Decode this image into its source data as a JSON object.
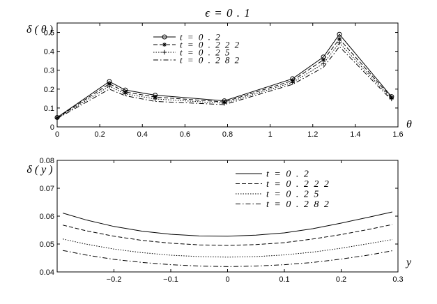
{
  "figure_title": "ϵ  =  0 . 1",
  "chart_data": [
    {
      "type": "line",
      "ylabel": "δ ( θ )",
      "xlabel": "θ",
      "xlim": [
        0,
        1.6
      ],
      "ylim": [
        0,
        0.55
      ],
      "xticks": [
        0,
        0.2,
        0.4,
        0.6,
        0.8,
        1,
        1.2,
        1.4,
        1.6
      ],
      "yticks": [
        0,
        0.1,
        0.2,
        0.3,
        0.4,
        0.5
      ],
      "x": [
        0,
        0.245,
        0.32,
        0.46,
        0.785,
        1.105,
        1.25,
        1.325,
        1.57
      ],
      "legend_position": "top-center",
      "series": [
        {
          "name": "t  =  0 . 2",
          "style": "solid",
          "marker": "circle",
          "values": [
            0.05,
            0.24,
            0.195,
            0.168,
            0.138,
            0.255,
            0.37,
            0.49,
            0.16
          ]
        },
        {
          "name": "t  =  0 . 2 2 2",
          "style": "dashed",
          "marker": "star",
          "values": [
            0.048,
            0.228,
            0.185,
            0.158,
            0.132,
            0.245,
            0.355,
            0.465,
            0.155
          ]
        },
        {
          "name": "t  =  0 . 2 5",
          "style": "dotted",
          "marker": "plus",
          "values": [
            0.046,
            0.215,
            0.175,
            0.148,
            0.125,
            0.235,
            0.335,
            0.445,
            0.148
          ]
        },
        {
          "name": "t  =  0 . 2 8 2",
          "style": "dashdot",
          "marker": "none",
          "values": [
            0.044,
            0.2,
            0.165,
            0.135,
            0.118,
            0.225,
            0.315,
            0.425,
            0.142
          ]
        }
      ]
    },
    {
      "type": "line",
      "ylabel": "δ ( y )",
      "xlabel": "y",
      "xlim": [
        -0.3,
        0.3
      ],
      "ylim": [
        0.04,
        0.08
      ],
      "xticks": [
        -0.2,
        -0.1,
        0,
        0.1,
        0.2,
        0.3
      ],
      "xtick_labels": [
        "−0.2",
        "−0.1",
        "0",
        "0.1",
        "0.2",
        "0.3"
      ],
      "yticks": [
        0.04,
        0.05,
        0.06,
        0.07,
        0.08
      ],
      "x": [
        -0.29,
        -0.25,
        -0.2,
        -0.15,
        -0.1,
        -0.05,
        0,
        0.05,
        0.1,
        0.15,
        0.2,
        0.25,
        0.29
      ],
      "legend_position": "top-right",
      "series": [
        {
          "name": "t  =  0 . 2",
          "style": "solid",
          "values": [
            0.0611,
            0.0587,
            0.0563,
            0.0546,
            0.0535,
            0.0529,
            0.0528,
            0.0532,
            0.054,
            0.0555,
            0.0575,
            0.0597,
            0.0615
          ]
        },
        {
          "name": "t  =  0 . 2 2 2",
          "style": "dashed",
          "values": [
            0.0568,
            0.0548,
            0.0528,
            0.0513,
            0.0503,
            0.0497,
            0.0495,
            0.0498,
            0.0505,
            0.0518,
            0.0534,
            0.0553,
            0.057
          ]
        },
        {
          "name": "t  =  0 . 2 5",
          "style": "dotted",
          "values": [
            0.0518,
            0.05,
            0.0482,
            0.0469,
            0.046,
            0.0455,
            0.0453,
            0.0455,
            0.0461,
            0.0471,
            0.0485,
            0.0502,
            0.0516
          ]
        },
        {
          "name": "t  =  0 . 2 8 2",
          "style": "dashdot",
          "values": [
            0.0477,
            0.0461,
            0.0445,
            0.0434,
            0.0426,
            0.0421,
            0.0419,
            0.0421,
            0.0426,
            0.0434,
            0.0446,
            0.0461,
            0.0476
          ]
        }
      ]
    }
  ]
}
